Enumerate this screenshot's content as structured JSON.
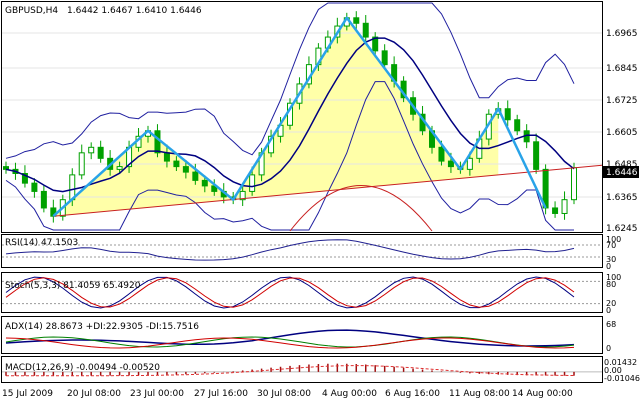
{
  "chart_header": {
    "symbol_timeframe": "GBPUSD,H4",
    "ohlc": "1.6442 1.6467 1.6410 1.6446"
  },
  "price_axis": {
    "labels": [
      "1.6965",
      "1.6845",
      "1.6725",
      "1.6605",
      "1.6485",
      "1.6365",
      "1.6245"
    ],
    "current_price": "1.6446"
  },
  "time_axis": {
    "labels": [
      "15 Jul 2009",
      "20 Jul 08:00",
      "23 Jul 00:00",
      "27 Jul 16:00",
      "30 Jul 08:00",
      "4 Aug 00:00",
      "6 Aug 16:00",
      "11 Aug 08:00",
      "14 Aug 00:00"
    ]
  },
  "indicators": {
    "rsi": {
      "label": "RSI(14) 47.1503",
      "levels": [
        "100",
        "70",
        "30",
        "0"
      ]
    },
    "stoch": {
      "label": "Stoch(5,3,3) 81.4059 65.4920",
      "levels": [
        "100",
        "80",
        "20",
        "0"
      ]
    },
    "adx": {
      "label": "ADX(14) 28.8673 +DI:22.9305 -DI:15.7516",
      "levels": [
        "68",
        "0"
      ]
    },
    "macd": {
      "label": "MACD(12,26,9) -0.00494 -0.00520",
      "levels": [
        "0.01432",
        "0.00",
        "-0.01046"
      ]
    }
  },
  "colors": {
    "candle": "#00a000",
    "bollinger": "#2020a0",
    "moving_average": "#000080",
    "pattern_lines": "#29a3e8",
    "pattern_fill": "#ffffa8",
    "trend_line": "#c82020",
    "rsi_line": "#202090",
    "stoch_main": "#000080",
    "stoch_signal": "#d00000",
    "adx_line": "#000080",
    "plus_di": "#008000",
    "minus_di": "#d00000",
    "macd_histogram": "#a01010",
    "macd_signal": "#e03030",
    "price_tag_bg": "#000000"
  },
  "chart_data": {
    "type": "candlestick",
    "title": "GBPUSD,H4",
    "ylim": [
      1.622,
      1.704
    ],
    "close_series_approx": [
      1.644,
      1.6425,
      1.639,
      1.636,
      1.63,
      1.627,
      1.633,
      1.642,
      1.65,
      1.652,
      1.648,
      1.644,
      1.645,
      1.652,
      1.656,
      1.658,
      1.65,
      1.647,
      1.645,
      1.643,
      1.64,
      1.638,
      1.636,
      1.634,
      1.633,
      1.636,
      1.642,
      1.65,
      1.656,
      1.66,
      1.668,
      1.675,
      1.682,
      1.688,
      1.692,
      1.696,
      1.699,
      1.697,
      1.692,
      1.687,
      1.682,
      1.676,
      1.67,
      1.664,
      1.658,
      1.652,
      1.647,
      1.645,
      1.644,
      1.648,
      1.655,
      1.664,
      1.666,
      1.662,
      1.658,
      1.654,
      1.644,
      1.63,
      1.628,
      1.633,
      1.6446
    ]
  }
}
